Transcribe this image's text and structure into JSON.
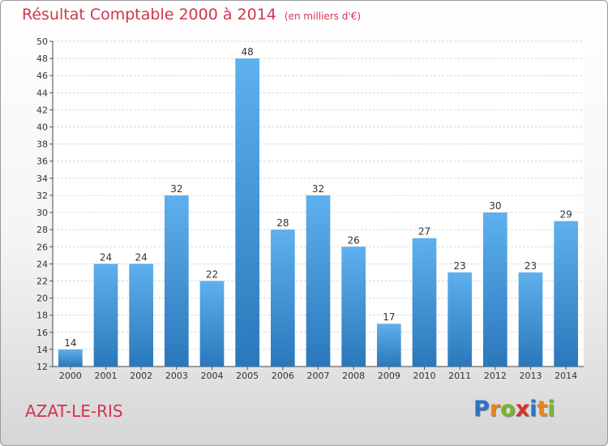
{
  "title": "Résultat Comptable 2000 à 2014",
  "unit": "(en milliers d'€)",
  "commune": "AZAT-LE-RIS",
  "logo": {
    "letters": [
      "P",
      "r",
      "o",
      "x",
      "i",
      "t",
      "i"
    ],
    "colors": [
      "#2f73c8",
      "#e8851c",
      "#77b52d",
      "#d6322f",
      "#2f73c8",
      "#e8851c",
      "#77b52d"
    ]
  },
  "chart_data": {
    "type": "bar",
    "categories": [
      "2000",
      "2001",
      "2002",
      "2003",
      "2004",
      "2005",
      "2006",
      "2007",
      "2008",
      "2009",
      "2010",
      "2011",
      "2012",
      "2013",
      "2014"
    ],
    "values": [
      14,
      24,
      24,
      32,
      22,
      48,
      28,
      32,
      26,
      17,
      27,
      23,
      30,
      23,
      29
    ],
    "ylim": [
      12,
      50
    ],
    "yticks": [
      12,
      14,
      16,
      18,
      20,
      22,
      24,
      26,
      28,
      30,
      32,
      34,
      36,
      38,
      40,
      42,
      44,
      46,
      48,
      50
    ],
    "grid": true,
    "bar_color_top": "#5fb0ee",
    "bar_color_bottom": "#2a78bb"
  }
}
